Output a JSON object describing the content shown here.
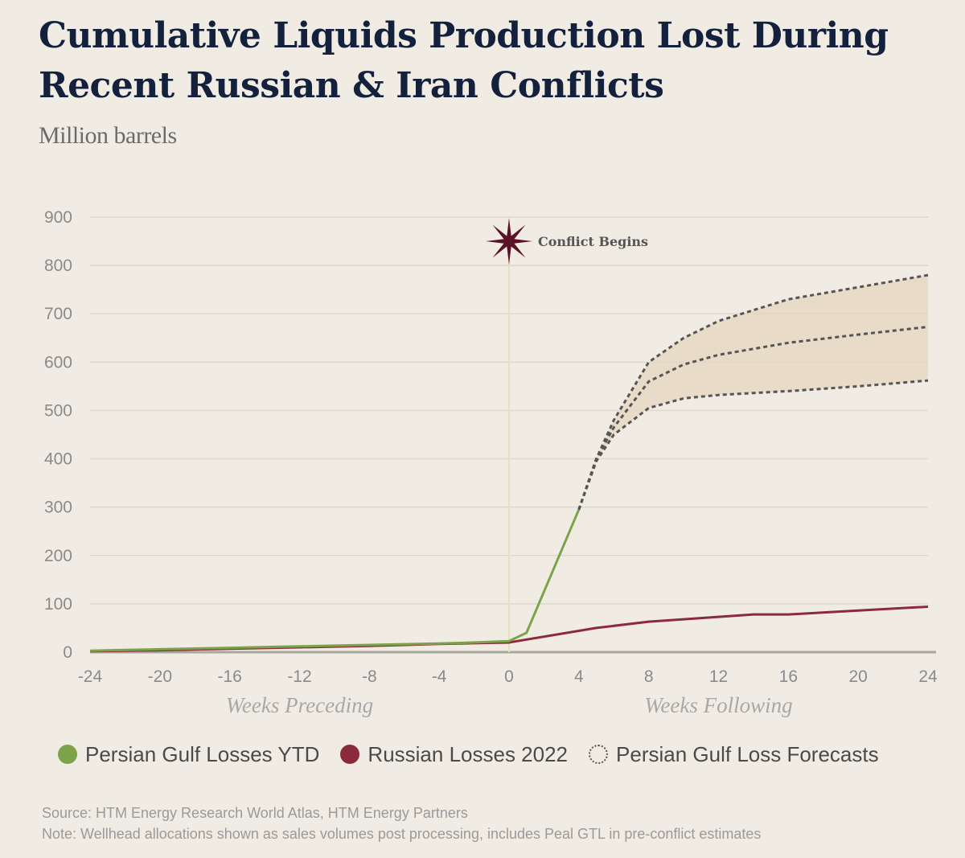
{
  "chart_data": {
    "type": "line",
    "title": "Cumulative Liquids Production Lost During Recent Russian & Iran Conflicts",
    "subtitle": "Million barrels",
    "xlabel": "",
    "ylabel": "",
    "x_group_labels": [
      "Weeks Preceding",
      "Weeks Following"
    ],
    "xlim": [
      -24,
      24
    ],
    "ylim": [
      0,
      900
    ],
    "x_ticks": [
      -24,
      -20,
      -16,
      -12,
      -8,
      -4,
      0,
      4,
      8,
      12,
      16,
      20,
      24
    ],
    "y_ticks": [
      0,
      100,
      200,
      300,
      400,
      500,
      600,
      700,
      800,
      900
    ],
    "grid": true,
    "legend_position": "bottom",
    "annotation": {
      "x": 0,
      "text": "Conflict Begins"
    },
    "series": [
      {
        "name": "Persian Gulf Losses YTD",
        "color": "#7da34a",
        "style": "solid",
        "x": [
          -24,
          -20,
          -16,
          -12,
          -8,
          -4,
          -2,
          0,
          1,
          4
        ],
        "y": [
          3,
          6,
          9,
          12,
          15,
          18,
          20,
          23,
          40,
          295
        ]
      },
      {
        "name": "Russian Losses 2022",
        "color": "#8b2a3a",
        "style": "solid",
        "x": [
          -24,
          -20,
          -16,
          -12,
          -8,
          -4,
          0,
          5,
          8,
          12,
          14,
          16,
          20,
          24
        ],
        "y": [
          2,
          4,
          7,
          10,
          13,
          17,
          20,
          50,
          63,
          73,
          78,
          78,
          86,
          94
        ]
      }
    ],
    "forecast": {
      "name": "Persian Gulf Loss Forecasts",
      "color": "#555555",
      "style": "dashed",
      "band_color": "#e6d6bd",
      "lines": [
        {
          "x": [
            4,
            5,
            6,
            8,
            10,
            12,
            16,
            20,
            24
          ],
          "y": [
            295,
            400,
            480,
            600,
            650,
            685,
            730,
            755,
            780
          ]
        },
        {
          "x": [
            4,
            5,
            6,
            8,
            10,
            12,
            16,
            20,
            24
          ],
          "y": [
            295,
            400,
            465,
            560,
            595,
            615,
            640,
            657,
            673
          ]
        },
        {
          "x": [
            4,
            5,
            6,
            8,
            10,
            12,
            16,
            20,
            24
          ],
          "y": [
            295,
            395,
            450,
            505,
            525,
            532,
            540,
            550,
            562
          ]
        }
      ]
    }
  },
  "legend": {
    "item1": "Persian Gulf Losses YTD",
    "item2": "Russian Losses 2022",
    "item3": "Persian Gulf Loss Forecasts"
  },
  "footer": {
    "source": "Source: HTM Energy Research World Atlas, HTM Energy Partners",
    "note": "Note: Wellhead allocations shown as sales volumes post processing, includes Peal GTL in pre-conflict estimates"
  }
}
